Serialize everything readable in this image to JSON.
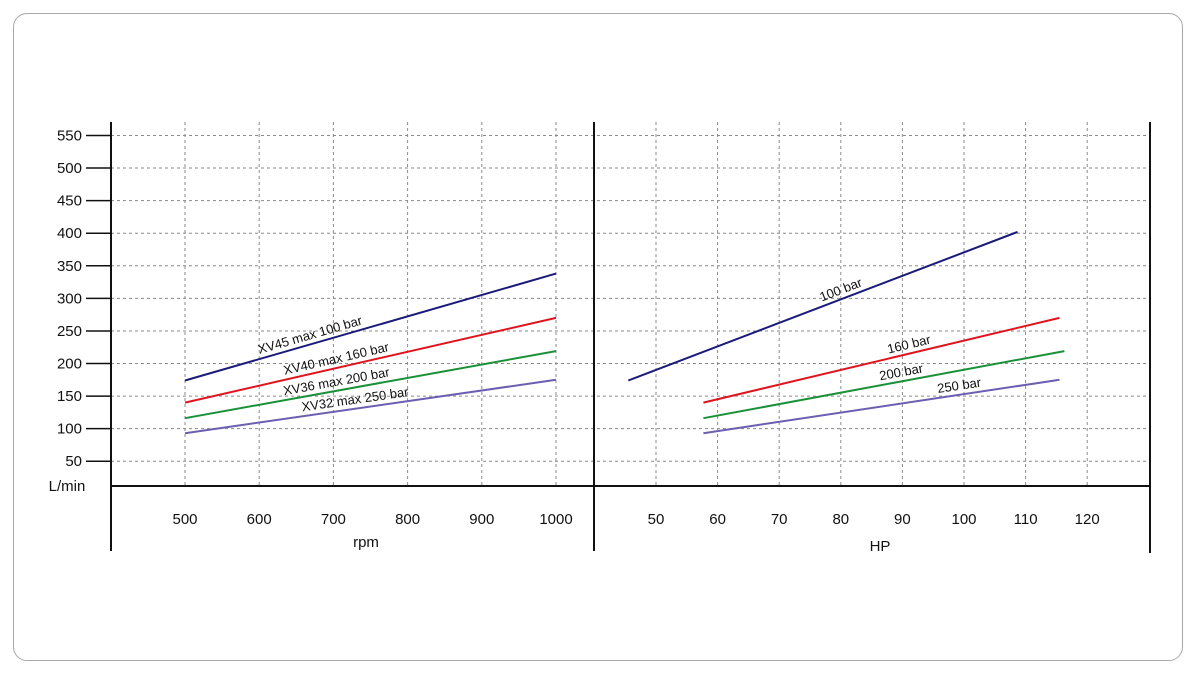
{
  "colors": {
    "grid": "#8a8a8a",
    "axis": "#111111",
    "xv45": "#1a1a7a",
    "xv40": "#e0141e",
    "xv36": "#1a9038",
    "xv32": "#6a5fb0"
  },
  "chart_data": [
    {
      "type": "line",
      "xlabel": "rpm",
      "ylabel": "L/min",
      "x_ticks": [
        "500",
        "600",
        "700",
        "800",
        "900",
        "1000"
      ],
      "y_ticks": [
        "50",
        "100",
        "150",
        "200",
        "250",
        "300",
        "350",
        "400",
        "450",
        "500",
        "550"
      ],
      "xlim": [
        400,
        1050
      ],
      "ylim": [
        12,
        570
      ],
      "grid": true,
      "series": [
        {
          "name": "XV45 max 100 bar",
          "color": "#1a1a7a",
          "x": [
            500,
            1000
          ],
          "y": [
            174,
            338
          ]
        },
        {
          "name": "XV40 max 160 bar",
          "color": "#e0141e",
          "x": [
            500,
            1000
          ],
          "y": [
            140,
            270
          ]
        },
        {
          "name": "XV36 max 200 bar",
          "color": "#1a9038",
          "x": [
            500,
            1000
          ],
          "y": [
            116,
            219
          ]
        },
        {
          "name": "XV32 max 250 bar",
          "color": "#6a5fb0",
          "x": [
            500,
            1000
          ],
          "y": [
            93,
            175
          ]
        }
      ]
    },
    {
      "type": "line",
      "xlabel": "HP",
      "ylabel": "",
      "x_ticks": [
        "50",
        "60",
        "70",
        "80",
        "90",
        "100",
        "110",
        "120"
      ],
      "xlim": [
        40,
        130
      ],
      "ylim": [
        12,
        570
      ],
      "grid": true,
      "series": [
        {
          "name": "100 bar",
          "color": "#1a1a7a",
          "x": [
            45.5,
            108.7
          ],
          "y": [
            174,
            402
          ]
        },
        {
          "name": "160 bar",
          "color": "#e0141e",
          "x": [
            57.7,
            115.5
          ],
          "y": [
            140,
            270
          ]
        },
        {
          "name": "200 bar",
          "color": "#1a9038",
          "x": [
            57.7,
            116.3
          ],
          "y": [
            116,
            219
          ]
        },
        {
          "name": "250 bar",
          "color": "#6a5fb0",
          "x": [
            57.7,
            115.5
          ],
          "y": [
            93,
            175
          ]
        }
      ]
    }
  ]
}
